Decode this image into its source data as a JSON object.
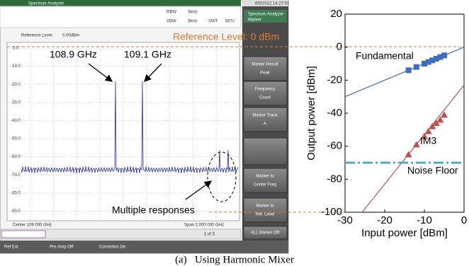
{
  "screen": {
    "title": "Spectrum Analyzer",
    "timestamp": "6/5/2012 14:27:51",
    "rbw_label": "RBW",
    "rbw": "3kHz",
    "vbw_label": "VBW",
    "vbw": "3kHz",
    "swt_label": "SWT",
    "swt": "667s",
    "ref_level": "Reference Level",
    "ref_value": "0.00dBm",
    "y_labels": [
      "0.0",
      "-10.0",
      "-20.0",
      "-30.0",
      "-40.0",
      "-50.0",
      "-60.0",
      "-70.0",
      "-80.0",
      "-90.0"
    ],
    "center": "Center 109.000 GHz",
    "span": "Span 2.000 000 GHz",
    "panel_title": "Spectrum Analyzer",
    "panel_subtitle": "Marker",
    "softkeys": [
      [
        "Marker Result",
        "Peak"
      ],
      [
        "Frequency",
        "Count"
      ],
      [
        "Marker Trace",
        "A"
      ],
      [
        "Marker to",
        "Center Freq"
      ],
      [
        "Marker to",
        "Ref. Level"
      ]
    ],
    "all_marker_off": "ALL Marker Off",
    "page": "2 of 3",
    "status": [
      "Ref Ext",
      "Pre-Amp Off",
      "Correction On"
    ]
  },
  "annotations": {
    "peak1": "108.9 GHz",
    "peak2": "109.1 GHz",
    "multiple": "Multiple responses",
    "reference": "Reference Level: 0 dBm"
  },
  "caption": "(a)   Using Harmonic Mixer",
  "chart_data": {
    "type": "scatter",
    "xlabel": "Input power [dBm]",
    "ylabel": "Output power [dBm]",
    "xlim": [
      -30,
      0
    ],
    "ylim": [
      -100,
      20
    ],
    "xticks": [
      -30,
      -20,
      -10,
      0
    ],
    "yticks": [
      20,
      0,
      -20,
      -40,
      -60,
      -80,
      -100
    ],
    "series": [
      {
        "name": "Fundamental",
        "color": "#3a6fc4",
        "marker": "square",
        "x": [
          -14,
          -12,
          -10,
          -9,
          -8,
          -7,
          -6,
          -5
        ],
        "values": [
          -14,
          -12,
          -10,
          -9,
          -8,
          -7,
          -6,
          -5
        ]
      },
      {
        "name": "IM3",
        "color": "#c0504d",
        "marker": "triangle",
        "x": [
          -14,
          -12,
          -10,
          -9,
          -8,
          -7,
          -6,
          -5
        ],
        "values": [
          -65,
          -59,
          -54,
          -51,
          -48,
          -46,
          -44,
          -41
        ]
      }
    ],
    "fit_lines": [
      {
        "color": "#3a6fc4",
        "x": [
          -30,
          0
        ],
        "values": [
          -30,
          0
        ]
      },
      {
        "color": "#c0504d",
        "x": [
          -25.7,
          0
        ],
        "values": [
          -100,
          -23
        ]
      }
    ],
    "noise_floor": {
      "name": "Noise Floor",
      "value": -70,
      "color": "#4bacc6"
    }
  }
}
